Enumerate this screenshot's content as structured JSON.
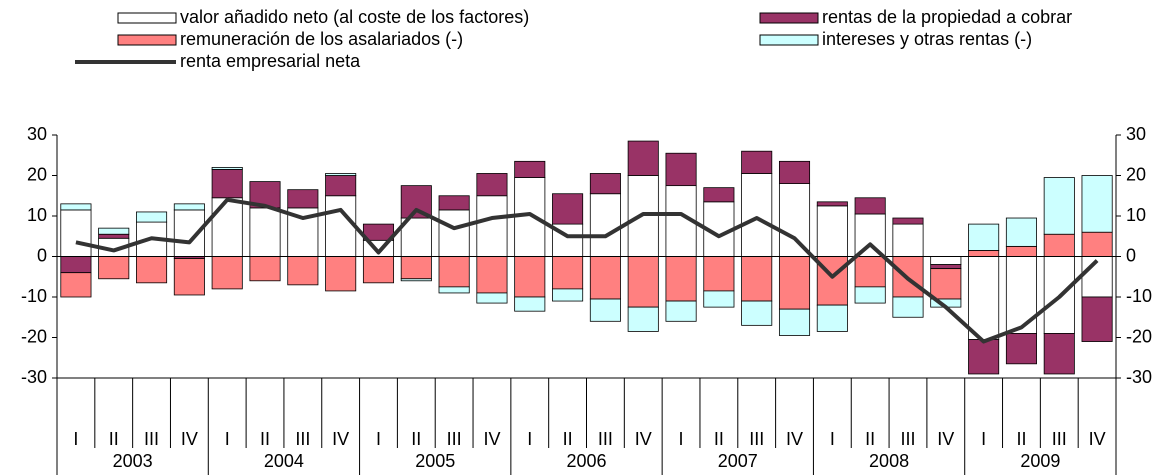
{
  "chart_data": {
    "type": "bar",
    "categories": [
      "I",
      "II",
      "III",
      "IV",
      "I",
      "II",
      "III",
      "IV",
      "I",
      "II",
      "III",
      "IV",
      "I",
      "II",
      "III",
      "IV",
      "I",
      "II",
      "III",
      "IV",
      "I",
      "II",
      "III",
      "IV",
      "I",
      "II",
      "III",
      "IV"
    ],
    "groups": [
      "2003",
      "2004",
      "2005",
      "2006",
      "2007",
      "2008",
      "2009"
    ],
    "series": [
      {
        "name": "valor añadido neto (al coste de los factores)",
        "color": "#ffffff",
        "values": [
          11.5,
          4.5,
          8.5,
          11.5,
          14.5,
          12,
          12,
          15,
          4,
          9.5,
          11.5,
          15,
          19.5,
          8,
          15.5,
          20,
          17.5,
          13.5,
          20.5,
          18,
          12.5,
          10.5,
          8,
          -2,
          -20.5,
          -19,
          -19,
          -10
        ]
      },
      {
        "name": "rentas de la propiedad a cobrar",
        "color": "#993366",
        "values": [
          -4,
          1,
          0,
          -0.5,
          7,
          6.5,
          4.5,
          5,
          4,
          8,
          3.5,
          5.5,
          4,
          7.5,
          5,
          8.5,
          8,
          3.5,
          5.5,
          5.5,
          1,
          4,
          1.5,
          -1,
          -8.5,
          -7.5,
          -10,
          -11
        ]
      },
      {
        "name": "remuneración de los asalariados (-)",
        "color": "#ff8080",
        "values": [
          -6,
          -5.5,
          -6.5,
          -9,
          -8,
          -6,
          -7,
          -8.5,
          -6.5,
          -5.5,
          -7.5,
          -9,
          -10,
          -8,
          -10.5,
          -12.5,
          -11,
          -8.5,
          -11,
          -13,
          -12,
          -7.5,
          -10,
          -7.5,
          1.5,
          2.5,
          5.5,
          6
        ]
      },
      {
        "name": "intereses y otras rentas (-)",
        "color": "#ccffff",
        "values": [
          1.5,
          1.5,
          2.5,
          1.5,
          0.5,
          0,
          0,
          0.5,
          0,
          -0.5,
          -1.5,
          -2.5,
          -3.5,
          -3,
          -5.5,
          -6,
          -5,
          -4,
          -6,
          -6.5,
          -6.5,
          -4,
          -5,
          -2,
          6.5,
          7,
          14,
          14
        ]
      },
      {
        "name": "renta empresarial neta",
        "color": "#333333",
        "type": "line",
        "values": [
          3.5,
          1.5,
          4.5,
          3.5,
          14,
          12.5,
          9.5,
          11.5,
          1,
          11.5,
          7,
          9.5,
          10.5,
          5,
          5,
          10.5,
          10.5,
          5,
          9.5,
          4.5,
          -5,
          3,
          -5.5,
          -12.5,
          -21,
          -17.5,
          -10,
          -1
        ]
      }
    ],
    "ylim": [
      -30,
      30
    ],
    "yticks": [
      -30,
      -20,
      -10,
      0,
      10,
      20,
      30
    ]
  }
}
